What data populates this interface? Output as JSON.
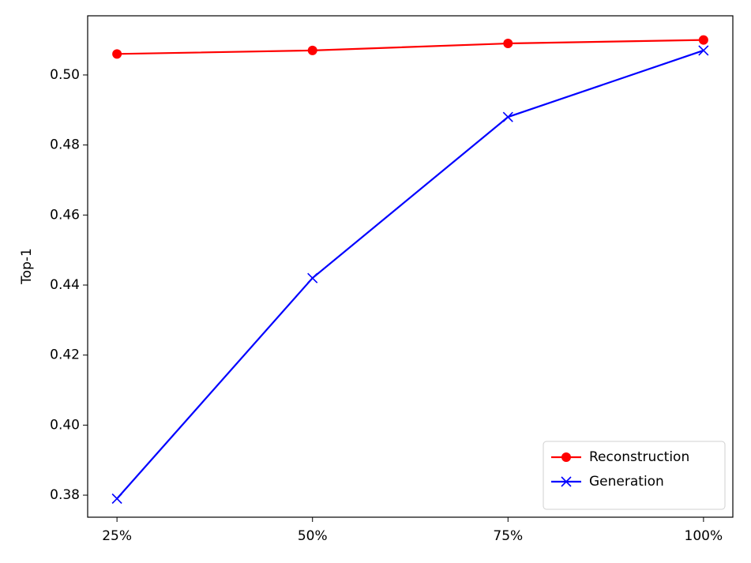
{
  "chart_data": {
    "type": "line",
    "ylabel": "Top-1",
    "categories": [
      "25%",
      "50%",
      "75%",
      "100%"
    ],
    "series": [
      {
        "name": "Reconstruction",
        "color": "#ff0000",
        "marker": "o",
        "values": [
          0.506,
          0.507,
          0.509,
          0.51
        ]
      },
      {
        "name": "Generation",
        "color": "#0000ff",
        "marker": "x",
        "values": [
          0.379,
          0.442,
          0.488,
          0.507
        ]
      }
    ],
    "ylim": [
      0.3737,
      0.5169
    ],
    "yticks": [
      0.38,
      {
        "value": 0.4,
        "label": "0.40"
      },
      0.42,
      0.44,
      0.46,
      0.48,
      {
        "value": 0.5,
        "label": "0.50"
      }
    ],
    "legend": "lower right"
  }
}
